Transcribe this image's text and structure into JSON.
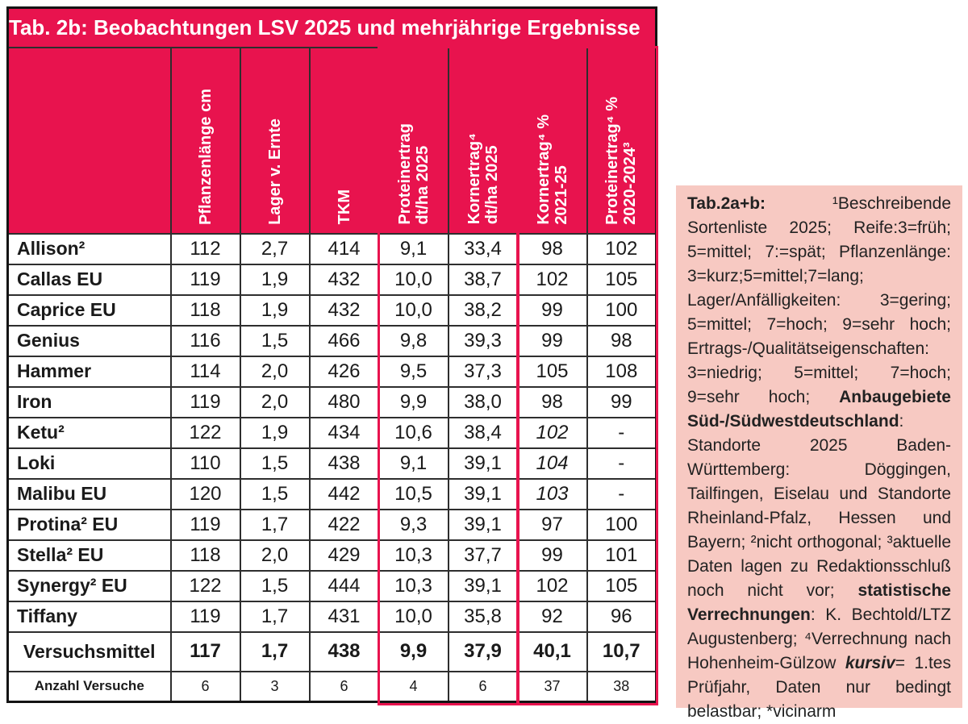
{
  "colors": {
    "crimson": "#e8134e",
    "notes_bg": "#f7c9c2",
    "header_text": "#ffffff",
    "body_text": "#1a1a1a"
  },
  "table": {
    "title": "Tab. 2b: Beobachtungen LSV 2025 und mehrjährige Ergebnisse",
    "columns": [
      {
        "id": "pflanzenlaenge",
        "lines": [
          "Pflanzenlänge cm"
        ]
      },
      {
        "id": "lager",
        "lines": [
          "Lager v. Ernte"
        ]
      },
      {
        "id": "tkm",
        "lines": [
          "TKM"
        ]
      },
      {
        "id": "proteinertrag-2025",
        "lines": [
          "Proteinertrag",
          "dt/ha 2025"
        ]
      },
      {
        "id": "kornertrag-2025",
        "lines": [
          "Kornertrag⁴",
          "dt/ha 2025"
        ]
      },
      {
        "id": "kornertrag-rel",
        "lines": [
          "Kornertrag⁴ %",
          "2021-25"
        ]
      },
      {
        "id": "proteinertrag-rel",
        "lines": [
          "Proteinertrag⁴ %",
          "2020-2024³"
        ]
      }
    ],
    "rows": [
      {
        "name": "Allison²",
        "values": [
          "112",
          "2,7",
          "414",
          "9,1",
          "33,4",
          "98",
          "102"
        ],
        "italic_cols": []
      },
      {
        "name": "Callas EU",
        "values": [
          "119",
          "1,9",
          "432",
          "10,0",
          "38,7",
          "102",
          "105"
        ],
        "italic_cols": []
      },
      {
        "name": "Caprice EU",
        "values": [
          "118",
          "1,9",
          "432",
          "10,0",
          "38,2",
          "99",
          "100"
        ],
        "italic_cols": []
      },
      {
        "name": "Genius",
        "values": [
          "116",
          "1,5",
          "466",
          "9,8",
          "39,3",
          "99",
          "98"
        ],
        "italic_cols": []
      },
      {
        "name": "Hammer",
        "values": [
          "114",
          "2,0",
          "426",
          "9,5",
          "37,3",
          "105",
          "108"
        ],
        "italic_cols": []
      },
      {
        "name": "Iron",
        "values": [
          "119",
          "2,0",
          "480",
          "9,9",
          "38,0",
          "98",
          "99"
        ],
        "italic_cols": []
      },
      {
        "name": "Ketu²",
        "values": [
          "122",
          "1,9",
          "434",
          "10,6",
          "38,4",
          "102",
          "-"
        ],
        "italic_cols": [
          5
        ]
      },
      {
        "name": "Loki",
        "values": [
          "110",
          "1,5",
          "438",
          "9,1",
          "39,1",
          "104",
          "-"
        ],
        "italic_cols": [
          5
        ]
      },
      {
        "name": "Malibu EU",
        "values": [
          "120",
          "1,5",
          "442",
          "10,5",
          "39,1",
          "103",
          "-"
        ],
        "italic_cols": [
          5
        ]
      },
      {
        "name": "Protina² EU",
        "values": [
          "119",
          "1,7",
          "422",
          "9,3",
          "39,1",
          "97",
          "100"
        ],
        "italic_cols": []
      },
      {
        "name": "Stella² EU",
        "values": [
          "118",
          "2,0",
          "429",
          "10,3",
          "37,7",
          "99",
          "101"
        ],
        "italic_cols": []
      },
      {
        "name": "Synergy² EU",
        "values": [
          "122",
          "1,5",
          "444",
          "10,3",
          "39,1",
          "102",
          "105"
        ],
        "italic_cols": []
      },
      {
        "name": "Tiffany",
        "values": [
          "119",
          "1,7",
          "431",
          "10,0",
          "35,8",
          "92",
          "96"
        ],
        "italic_cols": []
      }
    ],
    "summary_row": {
      "name": "Versuchsmittel",
      "values": [
        "117",
        "1,7",
        "438",
        "9,9",
        "37,9",
        "40,1",
        "10,7"
      ]
    },
    "count_row": {
      "name": "Anzahl Versuche",
      "values": [
        "6",
        "3",
        "6",
        "4",
        "6",
        "37",
        "38"
      ]
    }
  },
  "notes": {
    "segments": [
      {
        "text": "Tab.2a+b: ",
        "bold": true
      },
      {
        "text": "¹Beschreibende Sortenliste 2025; Reife:3=früh; 5=mittel; 7:=spät; Pflanzenlänge: 3=kurz;5=mittel;7=lang; Lager/Anfälligkeiten: 3=gering; 5=mittel; 7=hoch; 9=sehr hoch; Ertrags-/Qualitätseigenschaften: 3=niedrig; 5=mittel; 7=hoch; 9=sehr hoch; "
      },
      {
        "text": "Anbaugebiete Süd-/Südwestdeutschland",
        "bold": true
      },
      {
        "text": ": Standorte 2025 Baden-Württemberg: Döggingen, Tailfingen, Eiselau und Standorte Rheinland-Pfalz, Hessen und Bayern; ²nicht orthogonal; ³aktuelle Daten lagen zu Redaktionsschluß noch nicht vor; "
      },
      {
        "text": "statistische Verrechnungen",
        "bold": true
      },
      {
        "text": ": K. Bechtold/LTZ Augustenberg; ⁴Verrechnung nach Hohenheim-Gülzow "
      },
      {
        "text": "kursiv",
        "bold": true,
        "italic": true
      },
      {
        "text": "= 1.tes Prüfjahr, Daten nur bedingt belastbar; *vicinarm"
      }
    ]
  }
}
